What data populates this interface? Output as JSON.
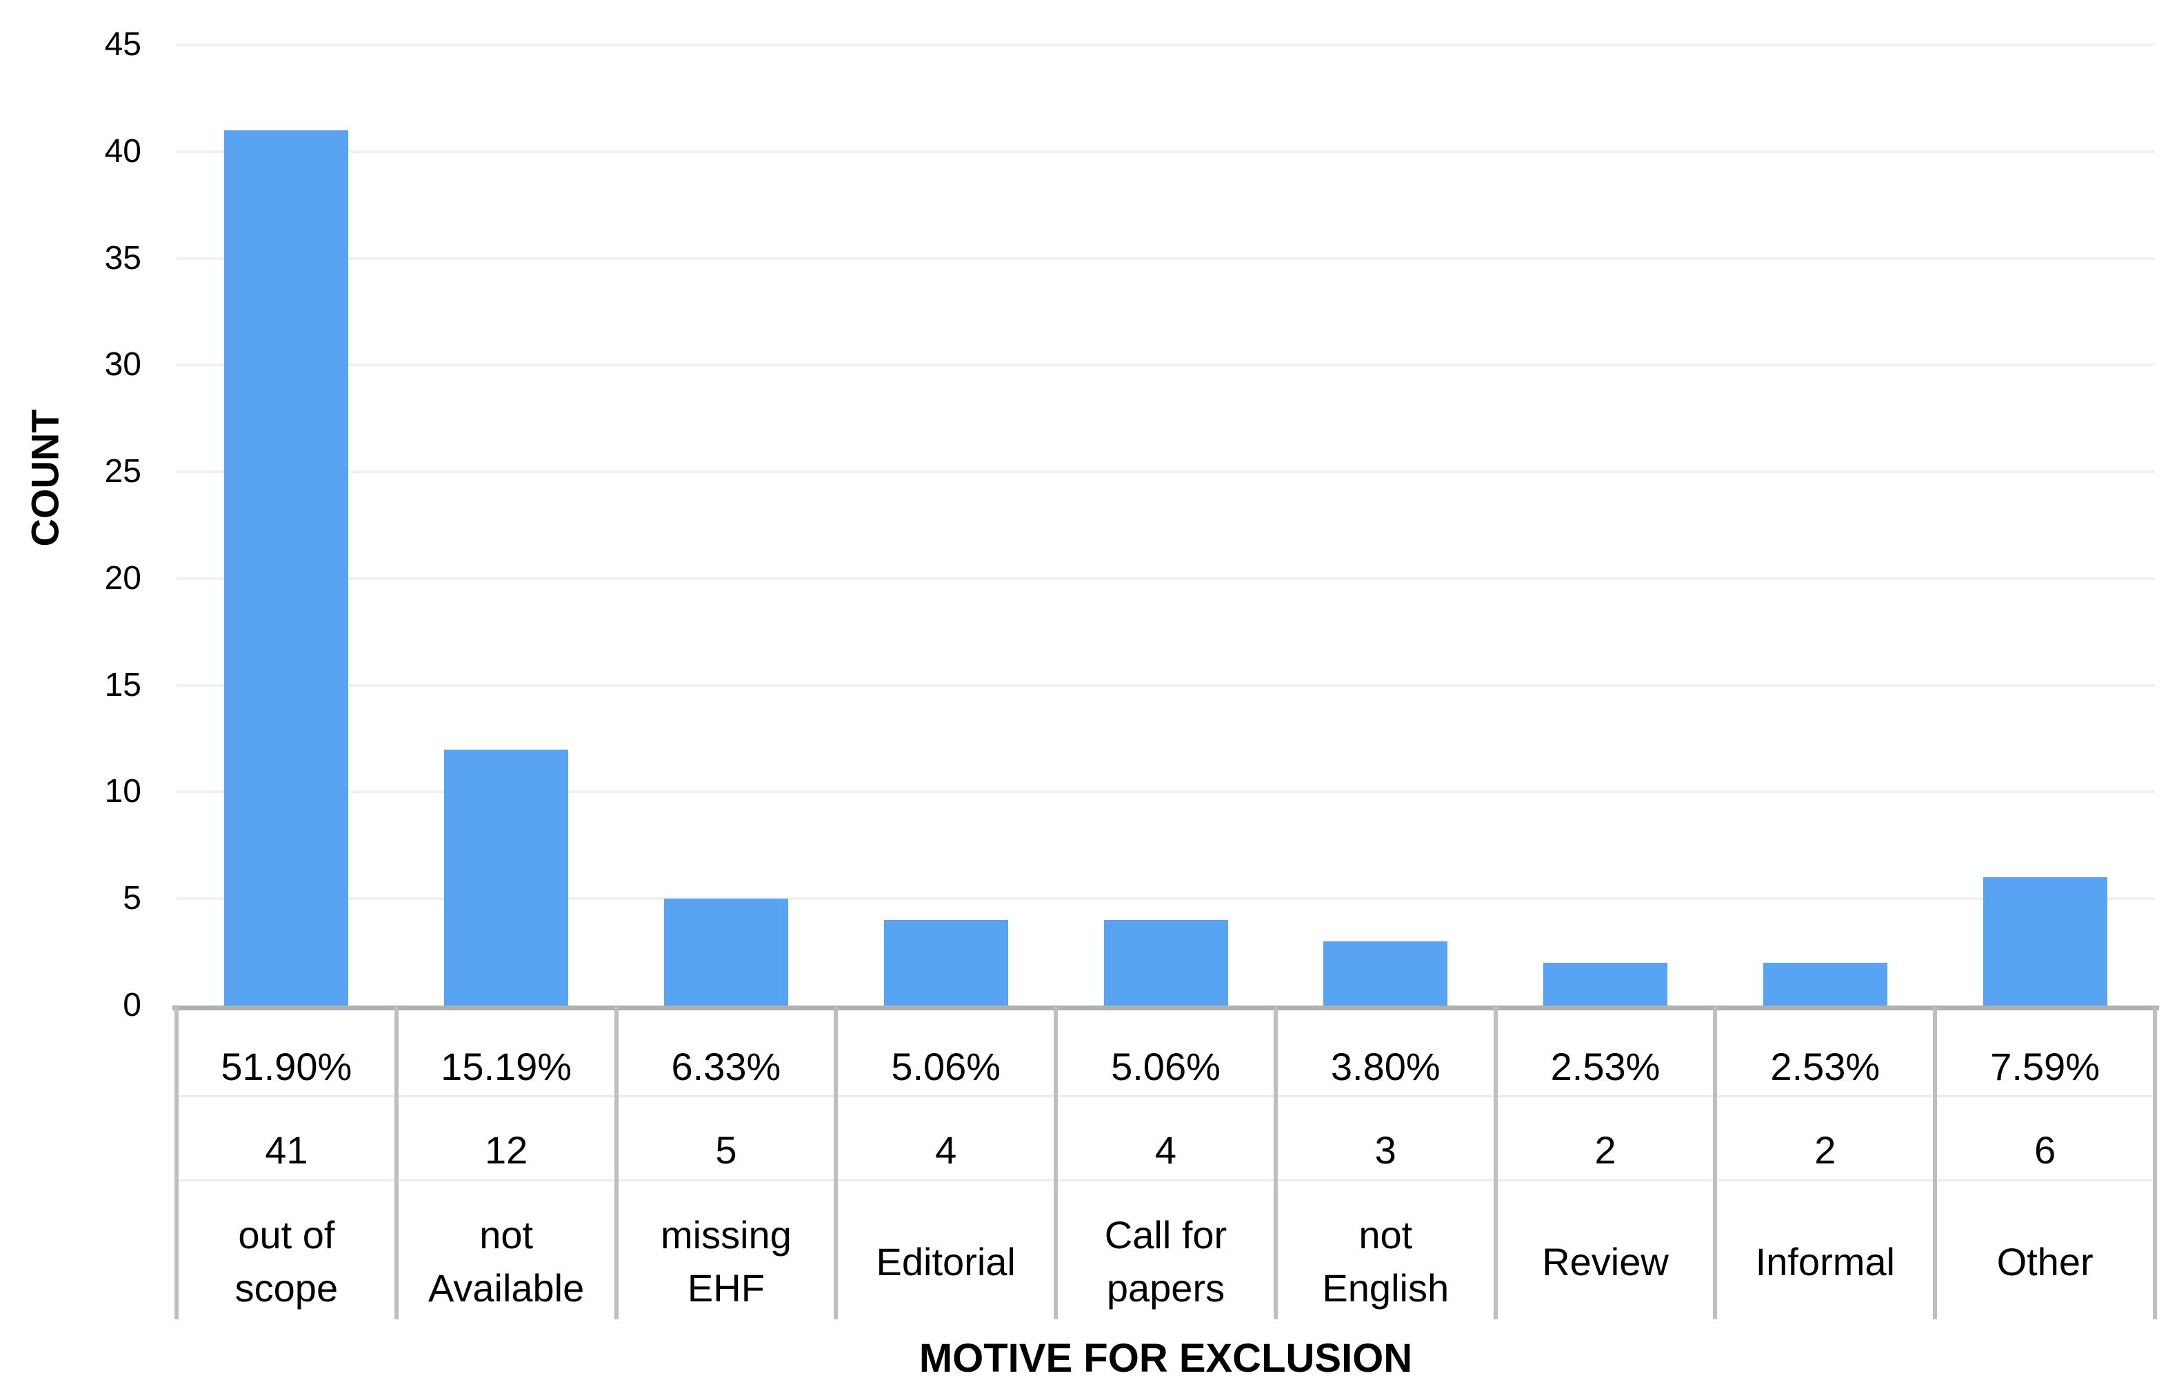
{
  "chart_data": {
    "type": "bar",
    "title": "",
    "xlabel": "MOTIVE FOR EXCLUSION",
    "ylabel": "COUNT",
    "ylim": [
      0,
      45
    ],
    "yticks": [
      0,
      5,
      10,
      15,
      20,
      25,
      30,
      35,
      40,
      45
    ],
    "grid": "horizontal-light",
    "legend_position": "none",
    "bar_color": "#58A4F2",
    "gridline_color": "#f0f0f0",
    "axis_line_color": "#b0b0b0",
    "table_border_color": "#bfbfbf",
    "categories": [
      "out of scope",
      "not Available",
      "missing EHF",
      "Editorial",
      "Call for papers",
      "not English",
      "Review",
      "Informal",
      "Other"
    ],
    "values": [
      41,
      12,
      5,
      4,
      4,
      3,
      2,
      2,
      6
    ],
    "data_table": {
      "percent_row": [
        "51.90%",
        "15.19%",
        "6.33%",
        "5.06%",
        "5.06%",
        "3.80%",
        "2.53%",
        "2.53%",
        "7.59%"
      ],
      "count_row": [
        "41",
        "12",
        "5",
        "4",
        "4",
        "3",
        "2",
        "2",
        "6"
      ],
      "label_rows": [
        [
          "out of",
          "scope"
        ],
        [
          "not",
          "Available"
        ],
        [
          "missing",
          "EHF"
        ],
        [
          "Editorial"
        ],
        [
          "Call for",
          "papers"
        ],
        [
          "not",
          "English"
        ],
        [
          "Review"
        ],
        [
          "Informal"
        ],
        [
          "Other"
        ]
      ]
    }
  }
}
